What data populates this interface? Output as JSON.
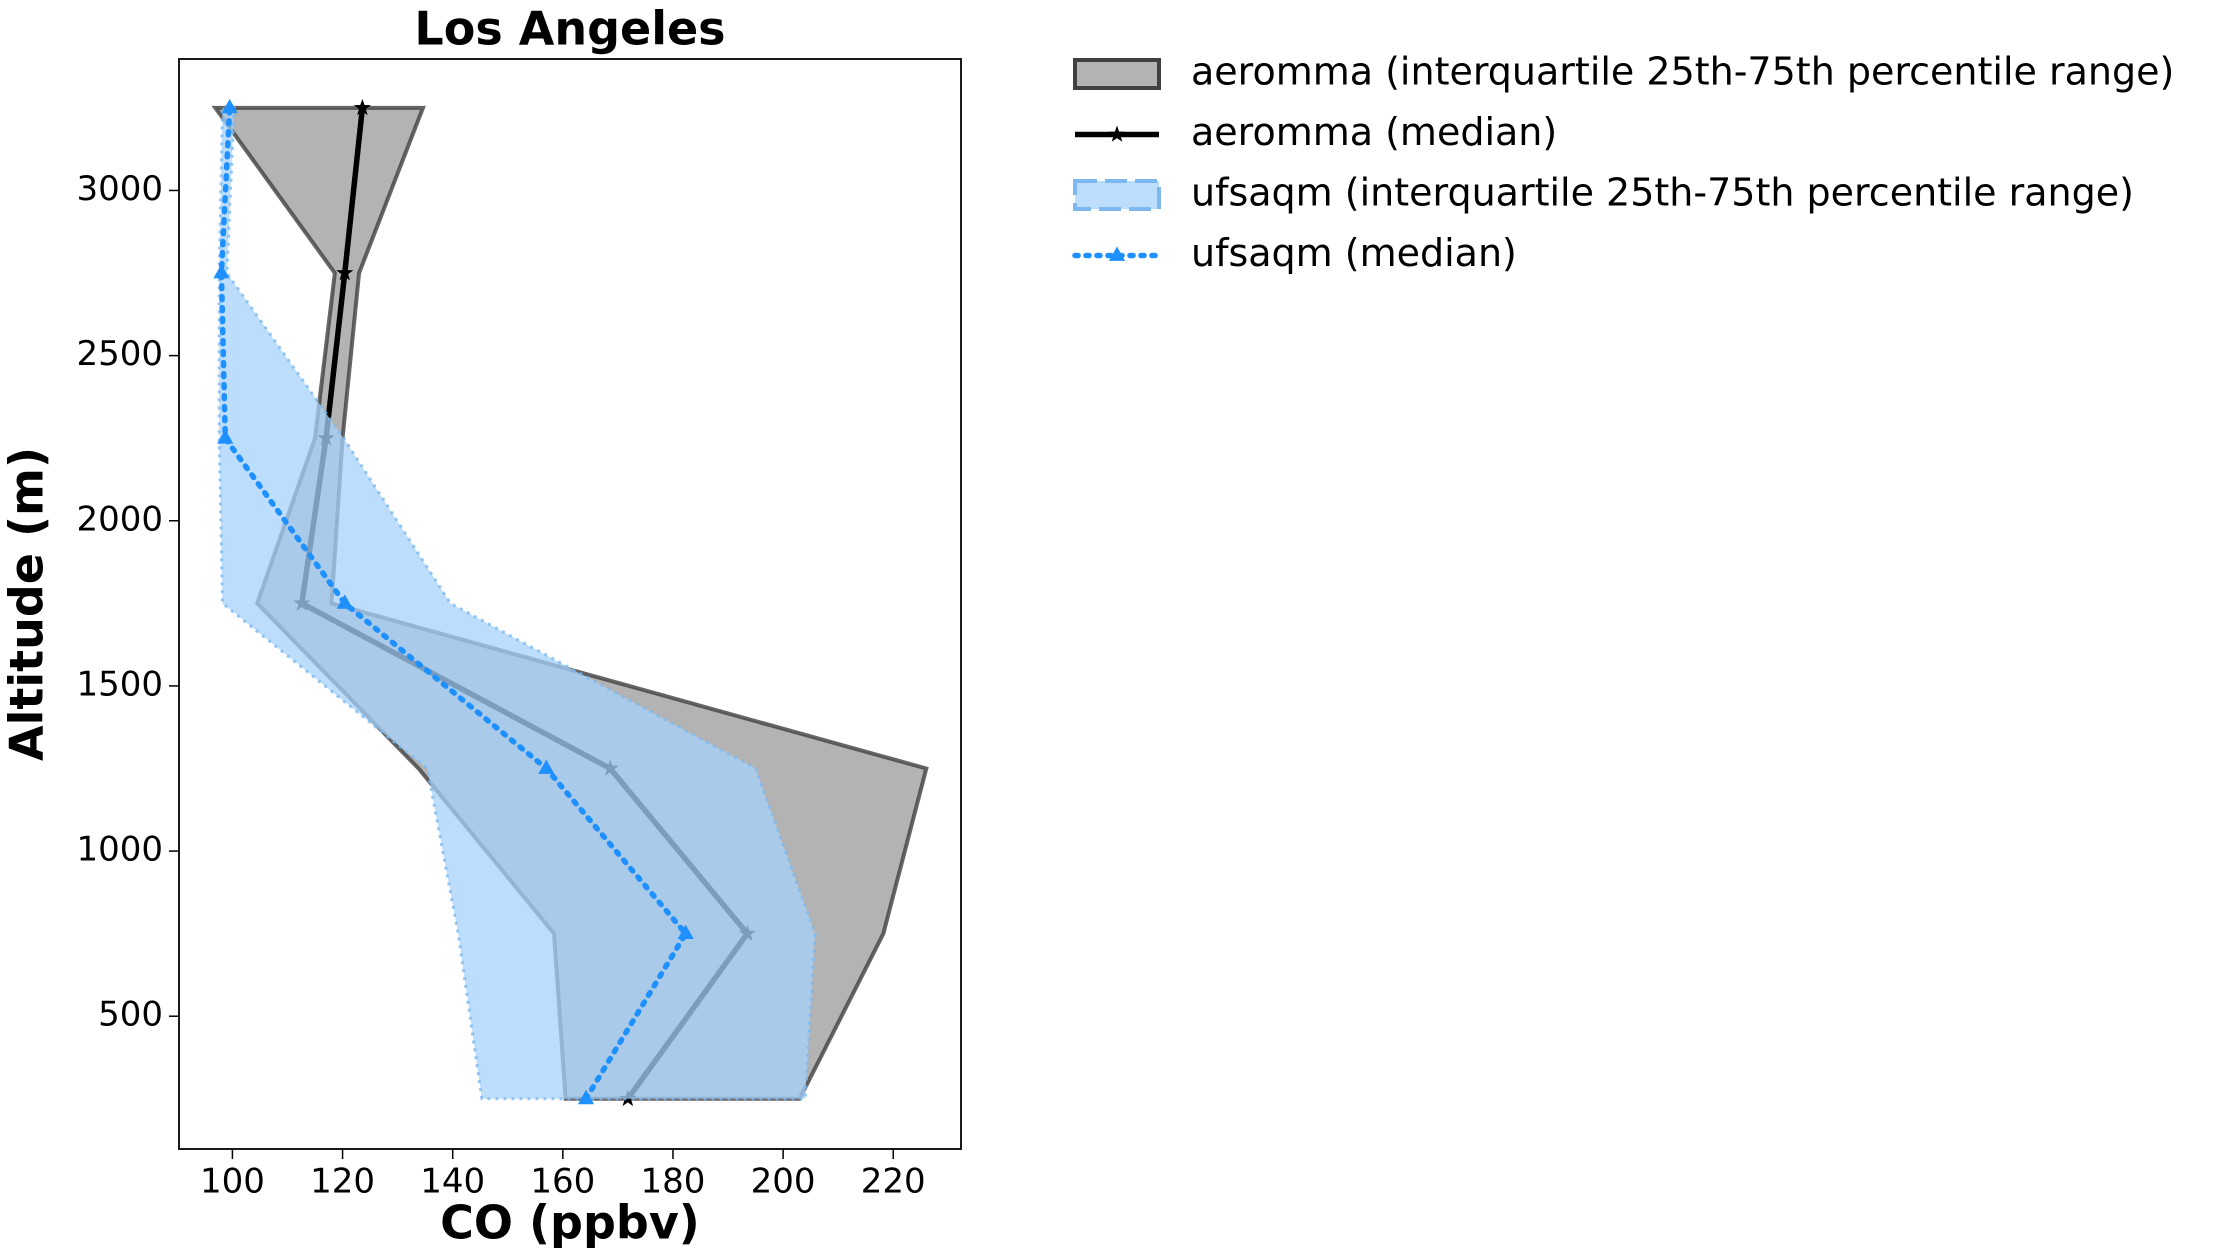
{
  "chart_data": {
    "type": "profile",
    "title": "Los Angeles",
    "xlabel": "CO (ppbv)",
    "ylabel": "Altitude (m)",
    "y": [
      250,
      750,
      1250,
      1750,
      2250,
      2750,
      3250
    ],
    "xlim": [
      90.3,
      232.3
    ],
    "xticks": [
      100,
      120,
      140,
      160,
      180,
      200,
      220
    ],
    "ylim": [
      98,
      3398
    ],
    "yticks": [
      500,
      1000,
      1500,
      2000,
      2500,
      3000
    ],
    "series": [
      {
        "name": "aeromma (interquartile 25th-75th percentile range)",
        "kind": "band",
        "color": "#808080",
        "edge": "#404040",
        "low": [
          160.5,
          158.4,
          133.8,
          104.5,
          115,
          118.6,
          96.9
        ],
        "high": [
          203,
          218.2,
          226,
          118,
          120,
          123,
          134.6
        ]
      },
      {
        "name": "aeromma (median)",
        "kind": "line",
        "color": "#000000",
        "marker": "star",
        "dash": "solid",
        "values": [
          171.8,
          193.5,
          168.6,
          112.6,
          117,
          120.4,
          123.6
        ]
      },
      {
        "name": "ufsaqm (interquartile 25th-75th percentile range)",
        "kind": "band",
        "color": "#a6d1fa",
        "edge": "#7db9f0",
        "low": [
          145.3,
          141,
          135.4,
          98.2,
          97.6,
          97.6,
          98.2
        ],
        "high": [
          204,
          205.8,
          195,
          139.6,
          120.2,
          99,
          100.3
        ]
      },
      {
        "name": "ufsaqm (median)",
        "kind": "line",
        "color": "#1e90ff",
        "marker": "triangle",
        "dash": "dotted",
        "values": [
          164.2,
          182.3,
          157,
          120.4,
          98.7,
          98,
          99.5
        ]
      }
    ]
  }
}
